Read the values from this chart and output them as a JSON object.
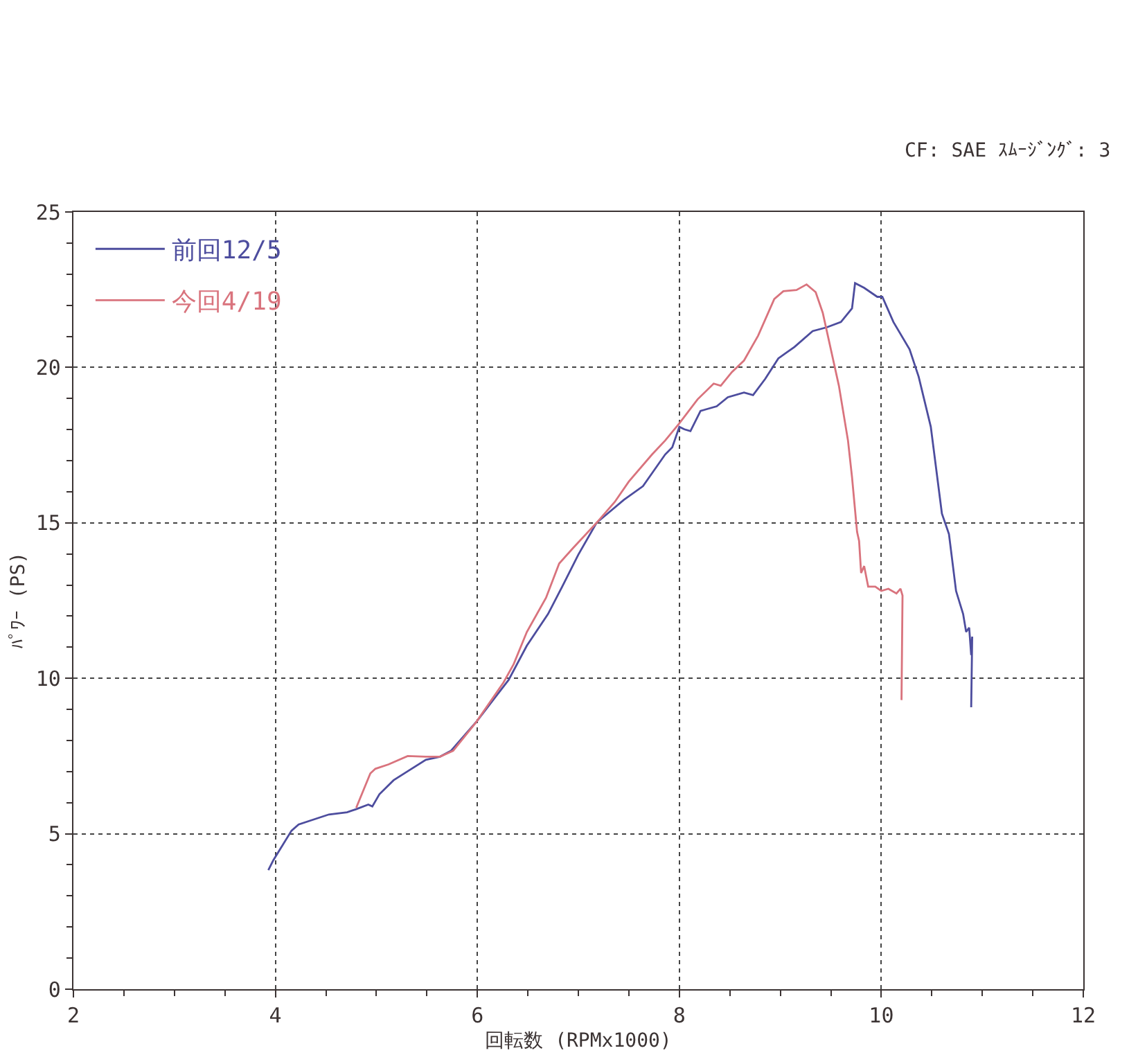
{
  "chart_data": {
    "type": "line",
    "xlabel": "回転数 (RPMx1000)",
    "ylabel": "ﾊﾟﾜｰ (PS)",
    "annotations": [
      "CF: SAE ｽﾑｰｼﾞﾝｸﾞ: 3"
    ],
    "xlim": [
      2,
      12
    ],
    "ylim": [
      0,
      25
    ],
    "xticks": [
      2,
      {
        "value": 2.5,
        "label": null
      },
      {
        "value": 3,
        "label": null
      },
      {
        "value": 3.5,
        "label": null
      },
      4,
      {
        "value": 4.5,
        "label": null
      },
      {
        "value": 5,
        "label": null
      },
      {
        "value": 5.5,
        "label": null
      },
      6,
      {
        "value": 6.5,
        "label": null
      },
      {
        "value": 7,
        "label": null
      },
      {
        "value": 7.5,
        "label": null
      },
      8,
      {
        "value": 8.5,
        "label": null
      },
      {
        "value": 9,
        "label": null
      },
      {
        "value": 9.5,
        "label": null
      },
      10,
      {
        "value": 10.5,
        "label": null
      },
      {
        "value": 11,
        "label": null
      },
      {
        "value": 11.5,
        "label": null
      },
      12
    ],
    "yticks": [
      0,
      {
        "value": 1,
        "label": null
      },
      {
        "value": 2,
        "label": null
      },
      {
        "value": 3,
        "label": null
      },
      {
        "value": 4,
        "label": null
      },
      5,
      {
        "value": 6,
        "label": null
      },
      {
        "value": 7,
        "label": null
      },
      {
        "value": 8,
        "label": null
      },
      {
        "value": 9,
        "label": null
      },
      10,
      {
        "value": 11,
        "label": null
      },
      {
        "value": 12,
        "label": null
      },
      {
        "value": 13,
        "label": null
      },
      {
        "value": 14,
        "label": null
      },
      15,
      {
        "value": 16,
        "label": null
      },
      {
        "value": 17,
        "label": null
      },
      {
        "value": 18,
        "label": null
      },
      {
        "value": 19,
        "label": null
      },
      20,
      {
        "value": 21,
        "label": null
      },
      {
        "value": 22,
        "label": null
      },
      {
        "value": 23,
        "label": null
      },
      {
        "value": 24,
        "label": null
      },
      25
    ],
    "grid": true,
    "legend": "top left",
    "line_style": "solid",
    "series": [
      {
        "name": "前回12/5",
        "color": "#4d4d9e",
        "x": [
          3.93,
          3.98,
          4.16,
          4.23,
          4.39,
          4.53,
          4.71,
          4.8,
          4.92,
          4.96,
          5.03,
          5.17,
          5.31,
          5.49,
          5.63,
          5.74,
          5.99,
          6.17,
          6.31,
          6.49,
          6.7,
          6.84,
          7.0,
          7.18,
          7.45,
          7.64,
          7.86,
          7.93,
          8.0,
          8.05,
          8.11,
          8.21,
          8.37,
          8.48,
          8.64,
          8.73,
          8.85,
          8.98,
          9.14,
          9.32,
          9.46,
          9.6,
          9.71,
          9.74,
          9.83,
          9.96,
          10.01,
          10.12,
          10.28,
          10.37,
          10.49,
          10.6,
          10.67,
          10.74,
          10.81,
          10.84,
          10.87,
          10.89,
          10.9,
          10.89
        ],
        "values": [
          3.83,
          4.15,
          5.1,
          5.3,
          5.47,
          5.62,
          5.69,
          5.79,
          5.94,
          5.88,
          6.27,
          6.72,
          7.01,
          7.38,
          7.48,
          7.67,
          8.6,
          9.36,
          9.95,
          11.05,
          12.07,
          12.95,
          13.98,
          15.0,
          15.74,
          16.18,
          17.2,
          17.43,
          18.09,
          18.01,
          17.95,
          18.6,
          18.75,
          19.04,
          19.19,
          19.11,
          19.63,
          20.29,
          20.66,
          21.17,
          21.29,
          21.46,
          21.9,
          22.71,
          22.56,
          22.27,
          22.27,
          21.46,
          20.58,
          19.7,
          18.09,
          15.3,
          14.64,
          12.81,
          12.07,
          11.49,
          11.63,
          10.75,
          11.34,
          9.07
        ]
      },
      {
        "name": "今回4/19",
        "color": "#d9737d",
        "x": [
          4.8,
          4.94,
          4.99,
          5.12,
          5.31,
          5.49,
          5.63,
          5.76,
          5.99,
          6.26,
          6.36,
          6.49,
          6.68,
          6.81,
          6.95,
          7.18,
          7.36,
          7.5,
          7.73,
          7.86,
          8.0,
          8.18,
          8.34,
          8.41,
          8.52,
          8.64,
          8.78,
          8.94,
          9.03,
          9.16,
          9.26,
          9.35,
          9.42,
          9.48,
          9.58,
          9.67,
          9.71,
          9.76,
          9.78,
          9.8,
          9.83,
          9.87,
          9.94,
          10.0,
          10.07,
          10.15,
          10.19,
          10.21,
          10.2
        ],
        "values": [
          5.83,
          6.94,
          7.09,
          7.23,
          7.5,
          7.48,
          7.48,
          7.67,
          8.6,
          9.87,
          10.46,
          11.49,
          12.59,
          13.69,
          14.2,
          15.0,
          15.67,
          16.33,
          17.2,
          17.65,
          18.2,
          18.97,
          19.48,
          19.41,
          19.85,
          20.22,
          21.02,
          22.2,
          22.45,
          22.49,
          22.67,
          22.42,
          21.76,
          20.88,
          19.41,
          17.65,
          16.47,
          14.71,
          14.42,
          13.39,
          13.61,
          12.95,
          12.95,
          12.81,
          12.88,
          12.73,
          12.88,
          12.66,
          9.3
        ]
      }
    ]
  }
}
